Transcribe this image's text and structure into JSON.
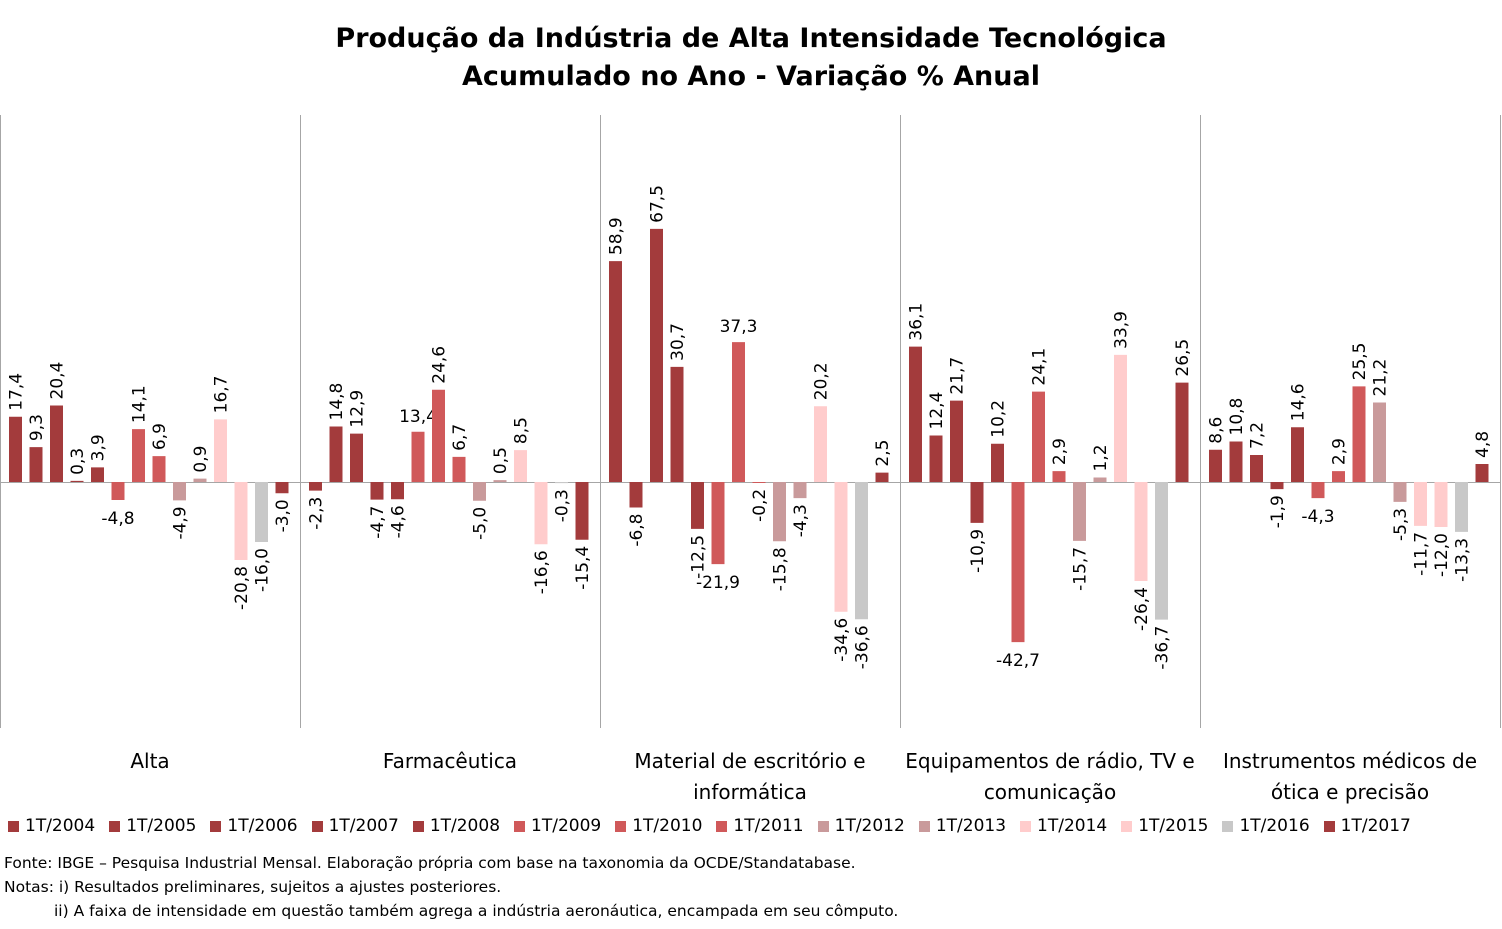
{
  "chart_data": {
    "type": "bar",
    "title": [
      "Produção da Indústria de Alta Intensidade Tecnológica",
      "Acumulado no Ano - Variação % Anual"
    ],
    "categories": [
      [
        "Alta"
      ],
      [
        "Farmacêutica"
      ],
      [
        "Material de escritório e",
        "informática"
      ],
      [
        "Equipamentos de rádio, TV e",
        "comunicação"
      ],
      [
        "Instrumentos médicos de",
        "ótica e precisão"
      ]
    ],
    "series": [
      {
        "name": "1T/2004",
        "color": "#A33B3C",
        "values": [
          17.4,
          -2.3,
          58.9,
          36.1,
          8.6
        ]
      },
      {
        "name": "1T/2005",
        "color": "#A33B3C",
        "values": [
          9.3,
          14.8,
          -6.8,
          12.4,
          10.8
        ]
      },
      {
        "name": "1T/2006",
        "color": "#A33B3C",
        "values": [
          20.4,
          12.9,
          67.5,
          21.7,
          7.2
        ]
      },
      {
        "name": "1T/2007",
        "color": "#A33B3C",
        "values": [
          0.3,
          -4.7,
          30.7,
          -10.9,
          -1.9
        ]
      },
      {
        "name": "1T/2008",
        "color": "#A33B3C",
        "values": [
          3.9,
          -4.6,
          -12.5,
          10.2,
          14.6
        ]
      },
      {
        "name": "1T/2009",
        "color": "#D0595A",
        "values": [
          -4.8,
          13.4,
          -21.9,
          -42.7,
          -4.3
        ]
      },
      {
        "name": "1T/2010",
        "color": "#D0595A",
        "values": [
          14.1,
          24.6,
          37.3,
          24.1,
          2.9
        ]
      },
      {
        "name": "1T/2011",
        "color": "#D0595A",
        "values": [
          6.9,
          6.7,
          -0.2,
          2.9,
          25.5
        ]
      },
      {
        "name": "1T/2012",
        "color": "#C99A9B",
        "values": [
          -4.9,
          -5.0,
          -15.8,
          -15.7,
          21.2
        ]
      },
      {
        "name": "1T/2013",
        "color": "#C99A9B",
        "values": [
          0.9,
          0.5,
          -4.3,
          1.2,
          -5.3
        ]
      },
      {
        "name": "1T/2014",
        "color": "#FFCCCC",
        "values": [
          16.7,
          8.5,
          20.2,
          33.9,
          -11.7
        ]
      },
      {
        "name": "1T/2015",
        "color": "#FFCCCC",
        "values": [
          -20.8,
          -16.6,
          -34.6,
          -26.4,
          -12.0
        ]
      },
      {
        "name": "1T/2016",
        "color": "#C8C8C8",
        "values": [
          -16.0,
          -0.3,
          -36.6,
          -36.7,
          -13.3
        ]
      },
      {
        "name": "1T/2017",
        "color": "#A33B3C",
        "values": [
          -3.0,
          -15.4,
          2.5,
          26.5,
          4.8
        ]
      }
    ],
    "value_labels": [
      [
        "17,4",
        "-2,3",
        "58,9",
        "36,1",
        "8,6"
      ],
      [
        "9,3",
        "14,8",
        "-6,8",
        "12,4",
        "10,8"
      ],
      [
        "20,4",
        "12,9",
        "67,5",
        "21,7",
        "7,2"
      ],
      [
        "0,3",
        "-4,7",
        "30,7",
        "-10,9",
        "-1,9"
      ],
      [
        "3,9",
        "-4,6",
        "-12,5",
        "10,2",
        "14,6"
      ],
      [
        "-4,8",
        "13,4",
        "-21,9",
        "-42,7",
        "-4,3"
      ],
      [
        "14,1",
        "24,6",
        "37,3",
        "24,1",
        "2,9"
      ],
      [
        "6,9",
        "6,7",
        "-0,2",
        "2,9",
        "25,5"
      ],
      [
        "-4,9",
        "-5,0",
        "-15,8",
        "-15,7",
        "21,2"
      ],
      [
        "0,9",
        "0,5",
        "-4,3",
        "1,2",
        "-5,3"
      ],
      [
        "16,7",
        "8,5",
        "20,2",
        "33,9",
        "-11,7"
      ],
      [
        "-20,8",
        "-16,6",
        "-34,6",
        "-26,4",
        "-12,0"
      ],
      [
        "-16,0",
        "-0,3",
        "-36,6",
        "-36,7",
        "-13,3"
      ],
      [
        "-3,0",
        "-15,4",
        "2,5",
        "26,5",
        "4,8"
      ]
    ],
    "horizontal_value_labels": [
      [
        false,
        false,
        false,
        false,
        false
      ],
      [
        false,
        false,
        false,
        false,
        false
      ],
      [
        false,
        false,
        false,
        false,
        false
      ],
      [
        false,
        false,
        false,
        false,
        false
      ],
      [
        false,
        false,
        false,
        false,
        false
      ],
      [
        true,
        true,
        true,
        true,
        true
      ],
      [
        false,
        false,
        true,
        false,
        false
      ],
      [
        false,
        false,
        false,
        false,
        false
      ],
      [
        false,
        false,
        false,
        false,
        false
      ],
      [
        false,
        false,
        false,
        false,
        false
      ],
      [
        false,
        false,
        false,
        false,
        false
      ],
      [
        false,
        false,
        false,
        false,
        false
      ],
      [
        false,
        false,
        false,
        false,
        false
      ],
      [
        false,
        false,
        false,
        false,
        false
      ]
    ],
    "xlabel": "",
    "ylabel": "",
    "ylim": [
      -50,
      75
    ],
    "grid": false,
    "legend_position": "bottom"
  },
  "footnotes": {
    "source": "Fonte: IBGE – Pesquisa Industrial Mensal. Elaboração própria com base na taxonomia da OCDE/Standatabase.",
    "note1": "Notas: i) Resultados preliminares, sujeitos a ajustes posteriores.",
    "note2": "ii) A faixa de intensidade em questão também agrega a indústria aeronáutica, encampada em seu cômputo."
  }
}
